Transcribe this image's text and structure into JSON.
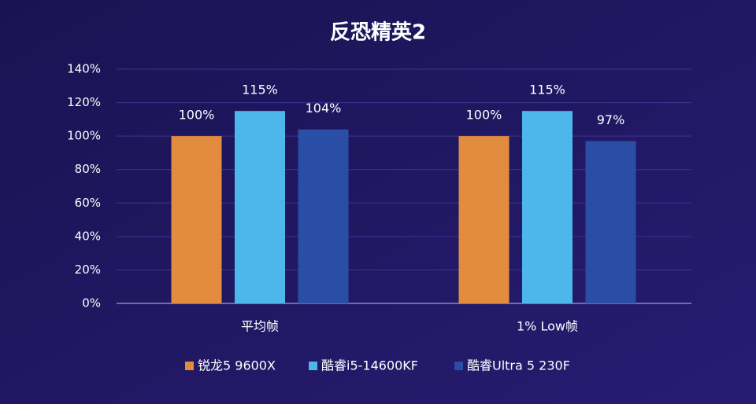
{
  "chart_data": {
    "type": "bar",
    "title": "反恐精英2",
    "categories": [
      "平均帧",
      "1% Low帧"
    ],
    "series": [
      {
        "name": "锐龙5 9600X",
        "color": "#e38b3f",
        "values": [
          100,
          100
        ],
        "value_labels": [
          "100%",
          "100%"
        ]
      },
      {
        "name": "酷睿i5-14600KF",
        "color": "#4db6ea",
        "values": [
          115,
          115
        ],
        "value_labels": [
          "115%",
          "115%"
        ]
      },
      {
        "name": "酷睿Ultra 5 230F",
        "color": "#2a4ea6",
        "values": [
          104,
          97
        ],
        "value_labels": [
          "104%",
          "97%"
        ]
      }
    ],
    "ylim": [
      0,
      140
    ],
    "yticks": [
      {
        "value": 0,
        "label": "0%"
      },
      {
        "value": 20,
        "label": "20%"
      },
      {
        "value": 40,
        "label": "40%"
      },
      {
        "value": 60,
        "label": "60%"
      },
      {
        "value": 80,
        "label": "80%"
      },
      {
        "value": 100,
        "label": "100%"
      },
      {
        "value": 120,
        "label": "120%"
      },
      {
        "value": 140,
        "label": "140%"
      }
    ],
    "grid": true,
    "legend": "bottom"
  }
}
